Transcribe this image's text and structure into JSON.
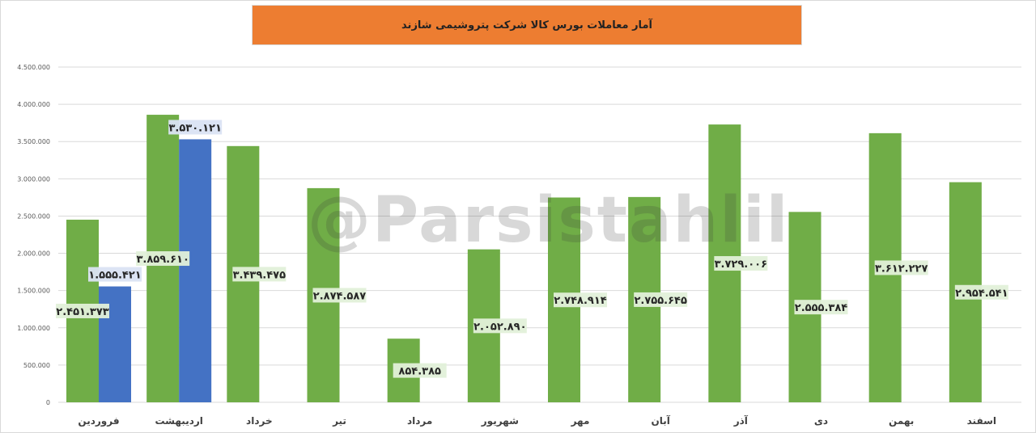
{
  "chart_data": {
    "type": "bar",
    "title": "آمار معاملات بورس کالا شرکت پتروشیمی شازند",
    "categories": [
      "فروردین",
      "اردیبهشت",
      "خرداد",
      "تیر",
      "مرداد",
      "شهریور",
      "مهر",
      "آبان",
      "آذر",
      "دی",
      "بهمن",
      "اسفند"
    ],
    "series": [
      {
        "values": [
          2451373,
          3859610,
          3439475,
          2874587,
          854385,
          2052890,
          2748914,
          2755645,
          3729006,
          2555384,
          3612227,
          2954541
        ],
        "labels": [
          "۲.۴۵۱.۳۷۳",
          "۳.۸۵۹.۶۱۰",
          "۳.۴۳۹.۴۷۵",
          "۲.۸۷۴.۵۸۷",
          "۸۵۴.۳۸۵",
          "۲.۰۵۲.۸۹۰",
          "۲.۷۴۸.۹۱۴",
          "۲.۷۵۵.۶۴۵",
          "۳.۷۲۹.۰۰۶",
          "۲.۵۵۵.۳۸۴",
          "۳.۶۱۲.۲۲۷",
          "۲.۹۵۴.۵۴۱"
        ],
        "color": "#70ad47"
      },
      {
        "values": [
          1555421,
          3530121,
          null,
          null,
          null,
          null,
          null,
          null,
          null,
          null,
          null,
          null
        ],
        "labels": [
          "۱.۵۵۵.۴۲۱",
          "۳.۵۳۰.۱۲۱",
          "",
          "",
          "",
          "",
          "",
          "",
          "",
          "",
          "",
          ""
        ],
        "color": "#4472c4"
      }
    ],
    "ylim": [
      0,
      4500000
    ],
    "yticks": [
      0,
      500000,
      1000000,
      1500000,
      2000000,
      2500000,
      3000000,
      3500000,
      4000000,
      4500000
    ],
    "ytick_labels": [
      "0",
      "500.000",
      "1.000.000",
      "1.500.000",
      "2.000.000",
      "2.500.000",
      "3.000.000",
      "3.500.000",
      "4.000.000",
      "4.500.000"
    ],
    "grid": true,
    "legend": "none"
  },
  "watermark": "@Parsistahlil"
}
